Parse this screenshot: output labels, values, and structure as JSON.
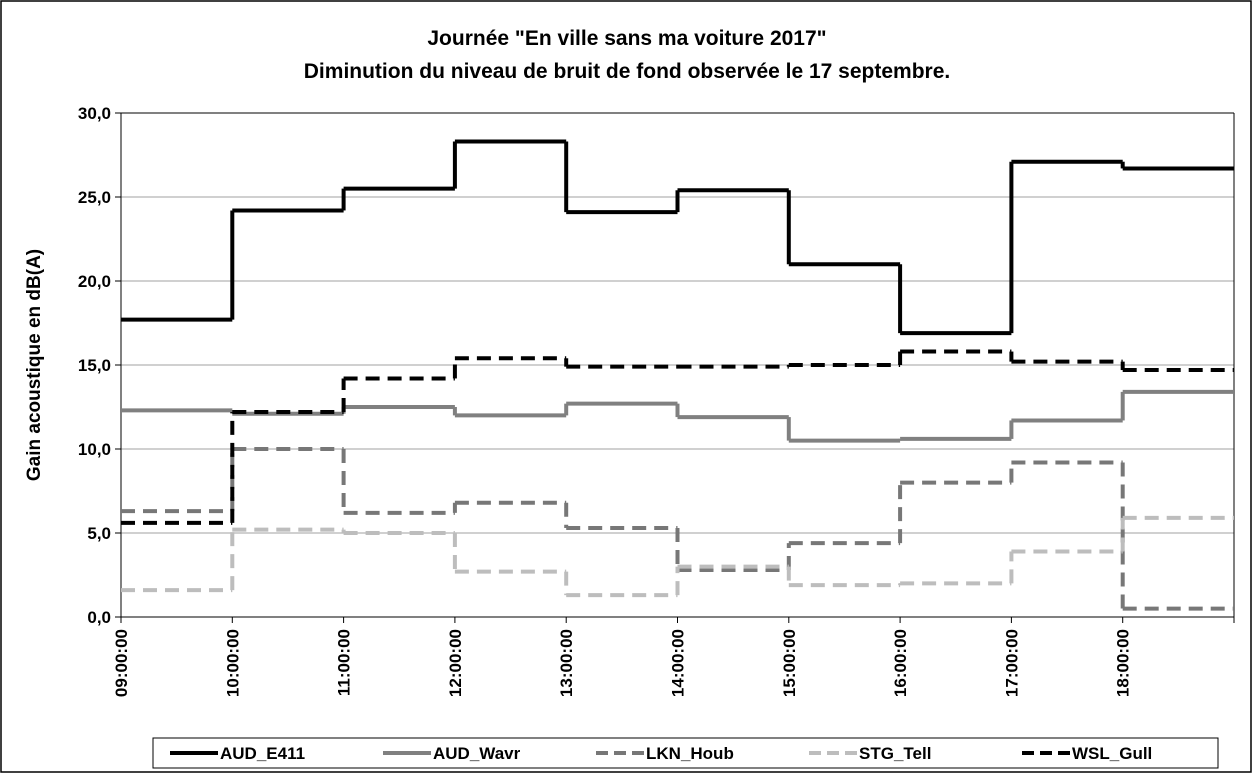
{
  "chart_data": {
    "type": "step",
    "title": "Journée \"En ville sans ma voiture 2017\"",
    "subtitle": "Diminution du niveau de bruit de fond observée le 17 septembre.",
    "y_label": "Gain acoustique en dB(A)",
    "categories": [
      "09:00:00",
      "10:00:00",
      "11:00:00",
      "12:00:00",
      "13:00:00",
      "14:00:00",
      "15:00:00",
      "16:00:00",
      "17:00:00",
      "18:00:00"
    ],
    "ylim": [
      0,
      30
    ],
    "yticks": [
      {
        "value": 0,
        "label": "0,0"
      },
      {
        "value": 5,
        "label": "5,0"
      },
      {
        "value": 10,
        "label": "10,0"
      },
      {
        "value": 15,
        "label": "15,0"
      },
      {
        "value": 20,
        "label": "20,0"
      },
      {
        "value": 25,
        "label": "25,0"
      },
      {
        "value": 30,
        "label": "30,0"
      }
    ],
    "grid": true,
    "legend": "bottom",
    "series": [
      {
        "name": "AUD_E411",
        "color": "#000000",
        "dash": "solid",
        "values": [
          17.7,
          24.2,
          25.5,
          28.3,
          24.1,
          25.4,
          21.0,
          16.9,
          27.1,
          26.7
        ]
      },
      {
        "name": "AUD_Wavr",
        "color": "#808080",
        "dash": "solid",
        "values": [
          12.3,
          12.1,
          12.5,
          12.0,
          12.7,
          11.9,
          10.5,
          10.6,
          11.7,
          13.4
        ]
      },
      {
        "name": "LKN_Houb",
        "color": "#777777",
        "dash": "dashed",
        "values": [
          6.3,
          10.0,
          6.2,
          6.8,
          5.3,
          2.8,
          4.4,
          8.0,
          9.2,
          0.5
        ]
      },
      {
        "name": "STG_Tell",
        "color": "#bdbdbd",
        "dash": "dashed",
        "values": [
          1.6,
          5.2,
          5.0,
          2.7,
          1.3,
          3.0,
          1.9,
          2.0,
          3.9,
          5.9
        ]
      },
      {
        "name": "WSL_Gull",
        "color": "#000000",
        "dash": "dashed",
        "values": [
          5.6,
          12.2,
          14.2,
          15.4,
          14.9,
          14.9,
          15.0,
          15.8,
          15.2,
          14.7
        ]
      }
    ]
  }
}
